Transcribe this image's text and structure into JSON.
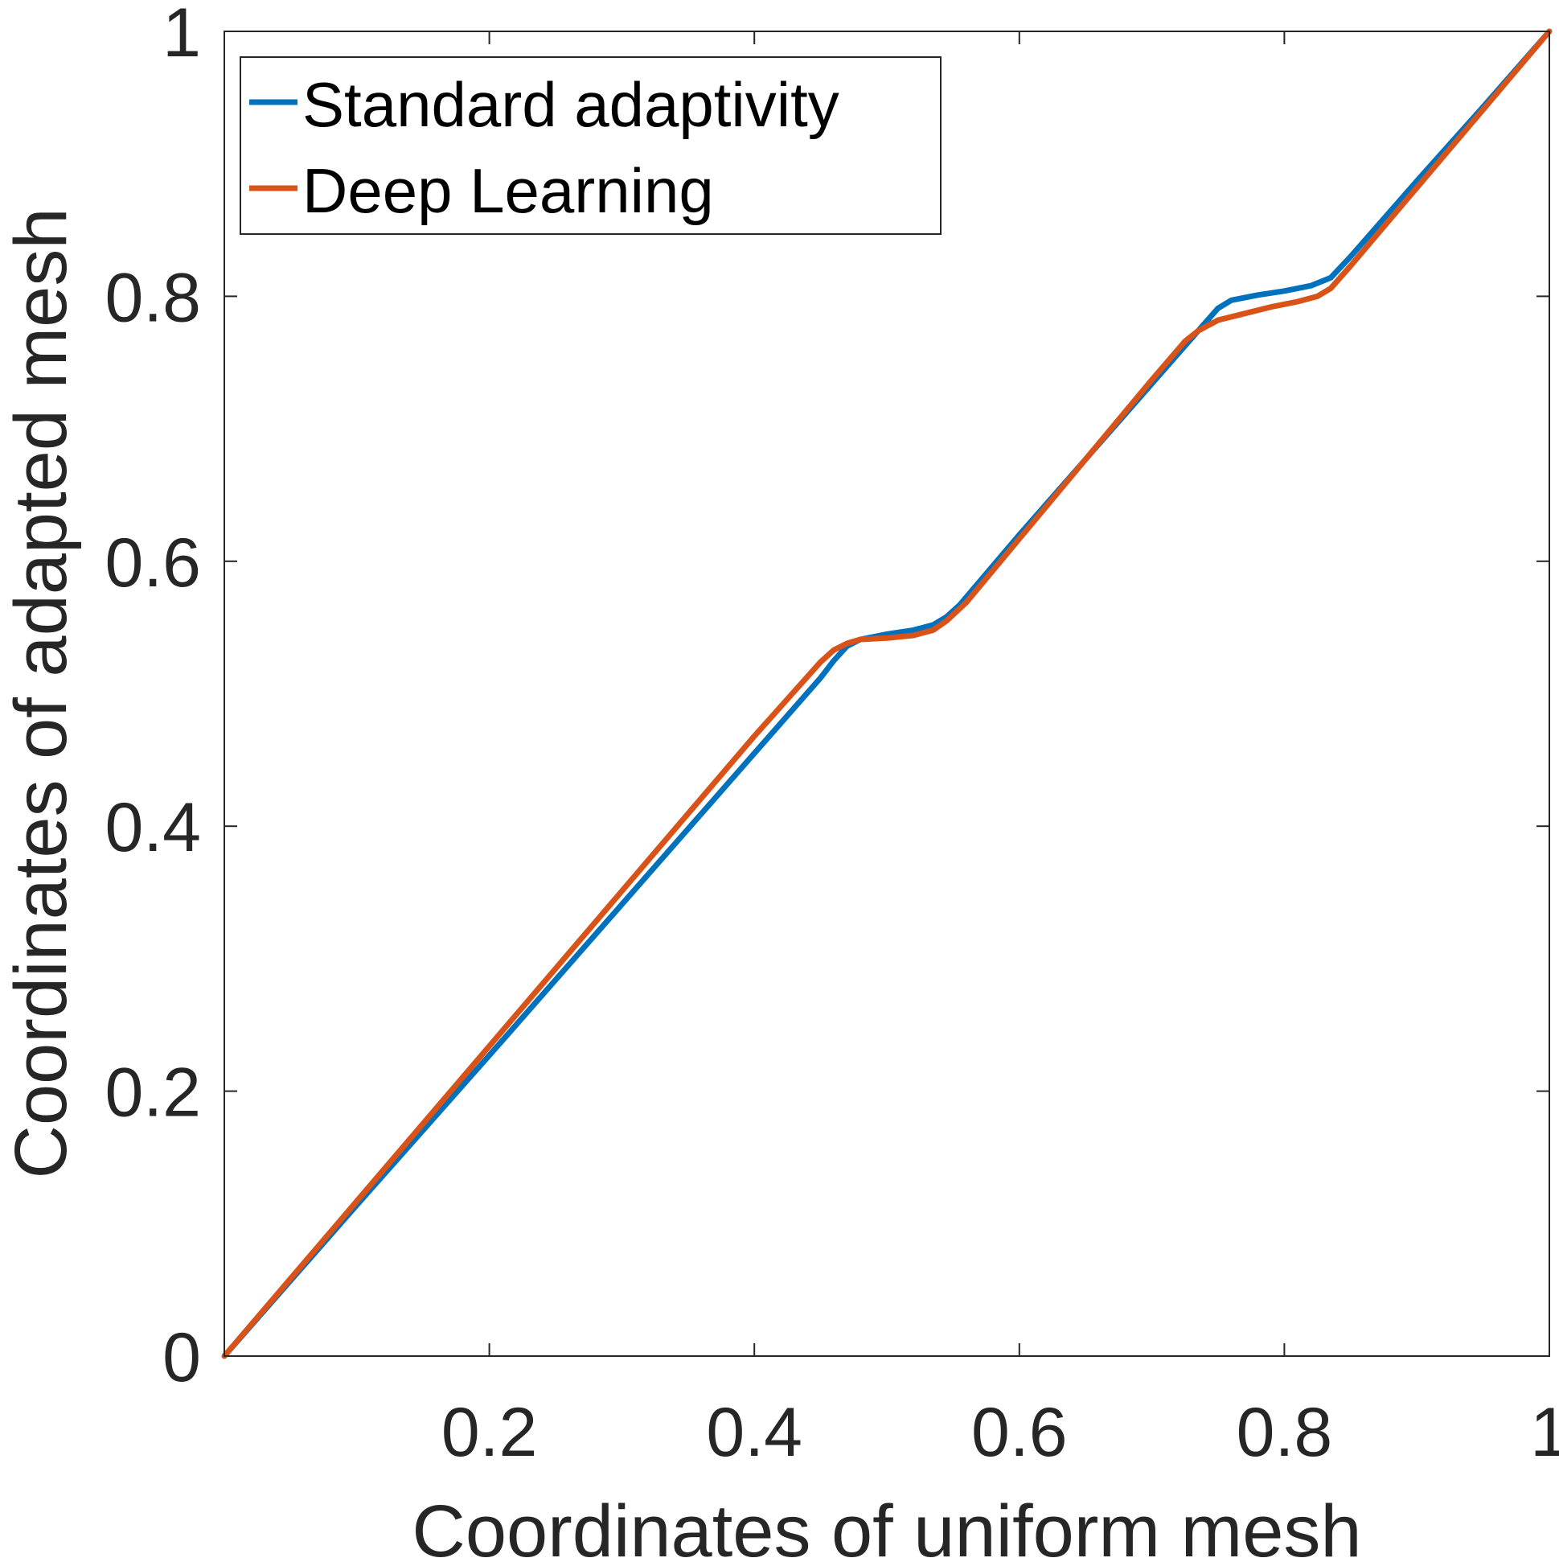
{
  "chart_data": {
    "type": "line",
    "title": "",
    "xlabel": "Coordinates of uniform mesh",
    "ylabel": "Coordinates of adapted mesh",
    "xlim": [
      0,
      1
    ],
    "ylim": [
      0,
      1
    ],
    "xticks": [
      0.2,
      0.4,
      0.6,
      0.8,
      1
    ],
    "xtick_labels": [
      "0.2",
      "0.4",
      "0.6",
      "0.8",
      "1"
    ],
    "yticks": [
      0,
      0.2,
      0.4,
      0.6,
      0.8,
      1
    ],
    "ytick_labels": [
      "0",
      "0.2",
      "0.4",
      "0.6",
      "0.8",
      "1"
    ],
    "grid": false,
    "legend_position": "top-left",
    "series": [
      {
        "name": "Standard adaptivity",
        "color": "#0072BD",
        "x": [
          0,
          0.1,
          0.2,
          0.3,
          0.4,
          0.45,
          0.46,
          0.47,
          0.48,
          0.5,
          0.52,
          0.535,
          0.545,
          0.555,
          0.6,
          0.65,
          0.7,
          0.735,
          0.75,
          0.76,
          0.78,
          0.8,
          0.82,
          0.835,
          0.85,
          0.9,
          0.95,
          1
        ],
        "y": [
          0,
          0.114,
          0.227,
          0.341,
          0.455,
          0.512,
          0.525,
          0.536,
          0.541,
          0.545,
          0.548,
          0.552,
          0.558,
          0.567,
          0.62,
          0.677,
          0.734,
          0.774,
          0.791,
          0.797,
          0.801,
          0.804,
          0.808,
          0.814,
          0.83,
          0.887,
          0.943,
          1
        ]
      },
      {
        "name": "Deep Learning",
        "color": "#D95319",
        "x": [
          0,
          0.1,
          0.2,
          0.3,
          0.4,
          0.45,
          0.46,
          0.47,
          0.48,
          0.5,
          0.52,
          0.535,
          0.545,
          0.56,
          0.6,
          0.65,
          0.7,
          0.725,
          0.735,
          0.75,
          0.77,
          0.79,
          0.81,
          0.825,
          0.835,
          0.85,
          0.9,
          0.95,
          1
        ],
        "y": [
          0,
          0.117,
          0.234,
          0.351,
          0.468,
          0.524,
          0.533,
          0.538,
          0.541,
          0.542,
          0.544,
          0.548,
          0.555,
          0.569,
          0.617,
          0.677,
          0.737,
          0.766,
          0.774,
          0.782,
          0.787,
          0.792,
          0.796,
          0.8,
          0.806,
          0.823,
          0.882,
          0.941,
          1
        ]
      }
    ]
  }
}
